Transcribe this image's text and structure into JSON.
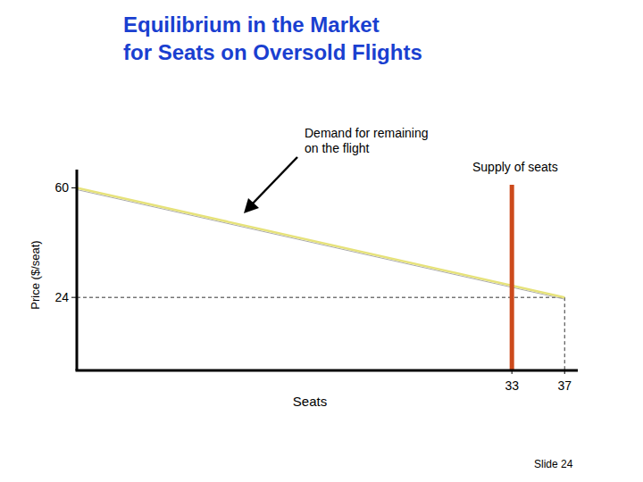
{
  "chart_data": {
    "type": "line",
    "title": "Equilibrium in the Market\nfor Seats on Oversold Flights",
    "x_label": "Seats",
    "y_label": "Price ($/seat)",
    "xlim": [
      0,
      38
    ],
    "ylim": [
      0,
      66
    ],
    "xticks": [
      33,
      37
    ],
    "yticks": [
      24,
      60
    ],
    "grid": false,
    "series": [
      {
        "name": "Demand for remaining\non the flight",
        "color": "#e6e27a",
        "x": [
          0,
          37
        ],
        "values": [
          60,
          24
        ],
        "line_style": "solid"
      },
      {
        "name": "Supply of seats",
        "color": "#cc4a1c",
        "x": [
          33,
          33
        ],
        "values": [
          0,
          61
        ],
        "line_style": "solid"
      }
    ],
    "equilibrium": {
      "x": 37,
      "y": 24,
      "line_style": "dashed"
    },
    "footer": "Slide 24"
  }
}
